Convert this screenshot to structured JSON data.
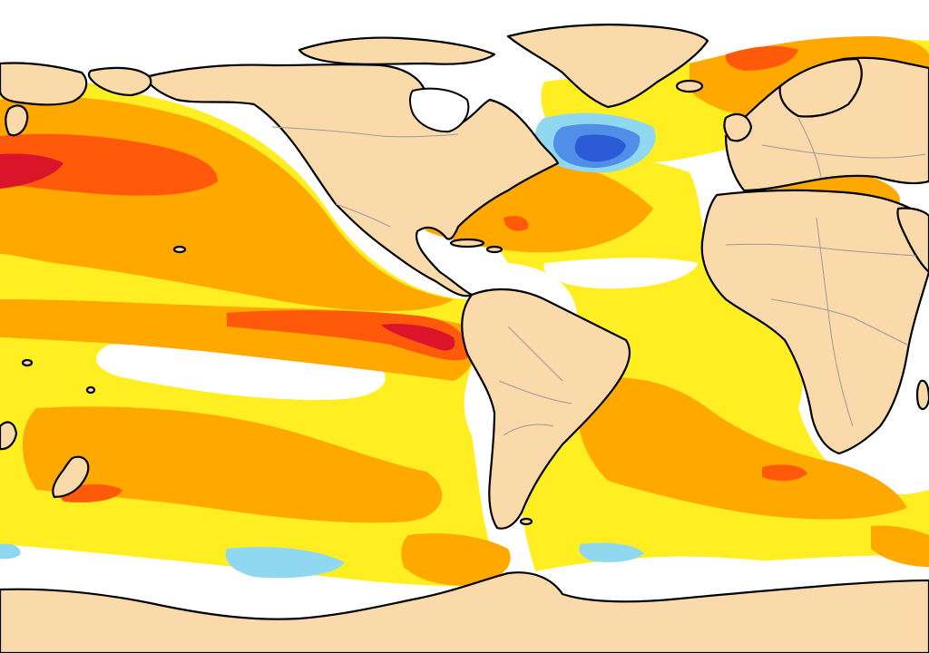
{
  "map": {
    "kind": "sea-surface-temperature-anomaly",
    "projection": "equirectangular",
    "ocean_background": "#ffffff",
    "land_color": "#fad9ab",
    "coastline_color": "#000000",
    "border_color": "#9a9a9a",
    "anomaly_palette": {
      "strong_cold": "#2b5bd7",
      "moderate_cold": "#4f8fe8",
      "weak_cold": "#8fd8f0",
      "neutral": "#ffffff",
      "weak_warm": "#ffee22",
      "moderate_warm": "#ffa800",
      "strong_warm": "#ff5a0a",
      "very_strong_warm": "#d9142b"
    },
    "regions": [
      "north-pacific-warm",
      "equatorial-pacific-warm",
      "north-atlantic-cold",
      "north-atlantic-warm",
      "south-pacific-warm",
      "south-atlantic-warm",
      "southern-ocean-cold",
      "indian-ocean-warm",
      "mediterranean-warm",
      "baltic-warm"
    ],
    "landmasses": [
      "north-america",
      "greenland",
      "south-america",
      "africa",
      "europe",
      "asia",
      "antarctica",
      "australia",
      "new-zealand"
    ]
  }
}
